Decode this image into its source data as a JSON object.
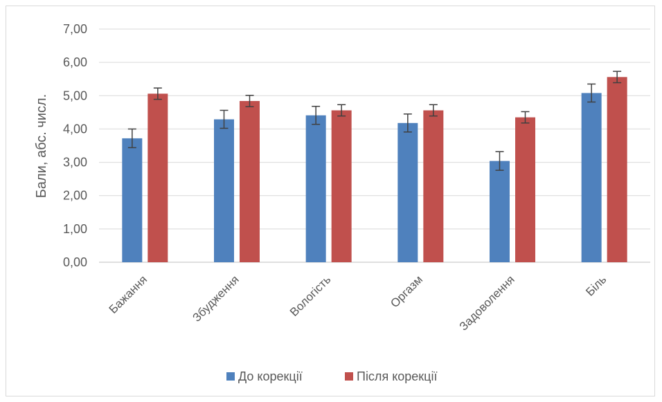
{
  "chart_data": {
    "type": "bar",
    "title": "",
    "xlabel": "",
    "ylabel": "Бали, абс. числ.",
    "ylim": [
      0,
      7
    ],
    "yticks": [
      "0,00",
      "1,00",
      "2,00",
      "3,00",
      "4,00",
      "5,00",
      "6,00",
      "7,00"
    ],
    "categories": [
      "Бажання",
      "Збудження",
      "Вологість",
      "Оргазм",
      "Задоволення",
      "Біль"
    ],
    "series": [
      {
        "name": "До корекції",
        "color": "#4f81bd",
        "values": [
          3.72,
          4.29,
          4.41,
          4.18,
          3.04,
          5.08
        ],
        "errors": [
          0.28,
          0.27,
          0.27,
          0.27,
          0.28,
          0.27
        ]
      },
      {
        "name": "Після корекції",
        "color": "#c0504d",
        "values": [
          5.06,
          4.84,
          4.56,
          4.56,
          4.35,
          5.56
        ],
        "errors": [
          0.17,
          0.17,
          0.17,
          0.17,
          0.17,
          0.17
        ]
      }
    ],
    "grid": true,
    "legend": "bottom"
  }
}
